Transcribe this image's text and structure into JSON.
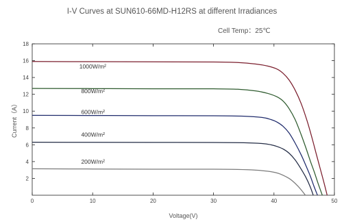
{
  "chart_data": {
    "type": "line",
    "title": "I-V Curves at SUN610-66MD-H12RS at different Irradiances",
    "annotation": "Cell Temp：25℃",
    "xlabel": "Voltage(V)",
    "ylabel": "Current（A）",
    "xlim": [
      0,
      50
    ],
    "ylim": [
      0,
      18
    ],
    "xticks": [
      0,
      10,
      20,
      30,
      40,
      50
    ],
    "yticks": [
      2,
      4,
      6,
      8,
      10,
      12,
      14,
      16,
      18
    ],
    "grid": false,
    "legend": "inline-labels",
    "series": [
      {
        "name": "1000W/m²",
        "color": "#7a1d2c",
        "label_at": [
          7.8,
          15.05
        ],
        "x": [
          0,
          10,
          20,
          30,
          34,
          37,
          39,
          40.5,
          41.5,
          42.5,
          43.5,
          44.5,
          45.5,
          46.3,
          47,
          47.6,
          48.2,
          48.8
        ],
        "y": [
          15.9,
          15.88,
          15.86,
          15.84,
          15.78,
          15.6,
          15.35,
          15.0,
          14.5,
          13.7,
          12.5,
          10.9,
          8.8,
          6.8,
          4.9,
          3.3,
          1.7,
          0
        ]
      },
      {
        "name": "800W/m²",
        "color": "#2d5a2d",
        "label_at": [
          8.1,
          12.15
        ],
        "x": [
          0,
          10,
          20,
          30,
          34,
          37,
          39,
          40.5,
          41.5,
          42.5,
          43.5,
          44.5,
          45.3,
          46,
          46.7,
          47.3,
          48.0
        ],
        "y": [
          12.7,
          12.68,
          12.66,
          12.65,
          12.6,
          12.4,
          12.1,
          11.7,
          11.2,
          10.3,
          9.0,
          7.2,
          5.6,
          4.1,
          2.7,
          1.4,
          0
        ]
      },
      {
        "name": "600W/m²",
        "color": "#1e2a6b",
        "label_at": [
          8.1,
          9.65
        ],
        "x": [
          0,
          10,
          20,
          30,
          35,
          38,
          39.5,
          40.5,
          41.5,
          42.5,
          43.5,
          44.5,
          45.3,
          46,
          46.6,
          47.2
        ],
        "y": [
          9.5,
          9.48,
          9.46,
          9.45,
          9.4,
          9.25,
          9.0,
          8.7,
          8.2,
          7.4,
          6.2,
          4.8,
          3.5,
          2.3,
          1.1,
          0
        ]
      },
      {
        "name": "400W/m²",
        "color": "#222b44",
        "label_at": [
          8.1,
          6.95
        ],
        "x": [
          0,
          10,
          20,
          30,
          35,
          38,
          39.5,
          40.5,
          41.5,
          42.5,
          43.5,
          44.5,
          45.3,
          46.0,
          46.5
        ],
        "y": [
          6.3,
          6.29,
          6.28,
          6.27,
          6.24,
          6.15,
          6.0,
          5.8,
          5.5,
          5.0,
          4.2,
          3.1,
          2.1,
          1.0,
          0
        ]
      },
      {
        "name": "200W/m²",
        "color": "#7a7a7a",
        "label_at": [
          8.1,
          3.75
        ],
        "x": [
          0,
          10,
          20,
          30,
          34,
          37,
          39,
          40.5,
          41.5,
          42.5,
          43.3,
          44.0,
          44.6,
          45.2
        ],
        "y": [
          3.15,
          3.12,
          3.1,
          3.09,
          3.06,
          2.98,
          2.85,
          2.65,
          2.38,
          2.0,
          1.55,
          1.05,
          0.55,
          0
        ]
      }
    ]
  }
}
